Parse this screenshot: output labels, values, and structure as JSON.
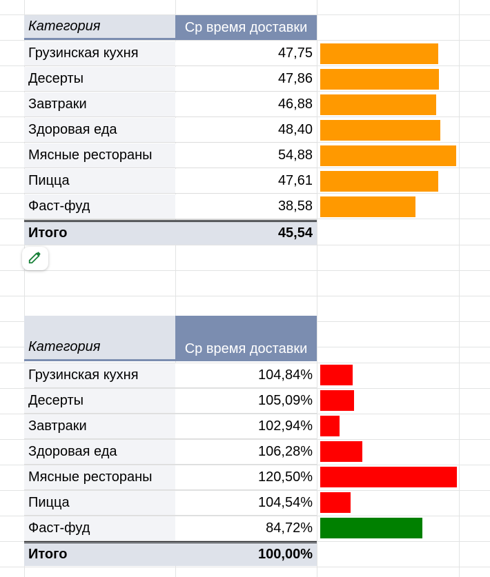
{
  "table1": {
    "header": {
      "category": "Категория",
      "metric": "Ср время доставки"
    },
    "rows": [
      {
        "category": "Грузинская кухня",
        "value": "47,75",
        "bar_value": 47.75
      },
      {
        "category": "Десерты",
        "value": "47,86",
        "bar_value": 47.86
      },
      {
        "category": "Завтраки",
        "value": "46,88",
        "bar_value": 46.88
      },
      {
        "category": "Здоровая еда",
        "value": "48,40",
        "bar_value": 48.4
      },
      {
        "category": "Мясные рестораны",
        "value": "54,88",
        "bar_value": 54.88
      },
      {
        "category": "Пицца",
        "value": "47,61",
        "bar_value": 47.61
      },
      {
        "category": "Фаст-фуд",
        "value": "38,58",
        "bar_value": 38.58
      }
    ],
    "total": {
      "label": "Итого",
      "value": "45,54"
    },
    "bar_color": "#ff9900"
  },
  "table2": {
    "header": {
      "category": "Категория",
      "metric": "Ср время доставки"
    },
    "rows": [
      {
        "category": "Грузинская кухня",
        "value": "104,84%",
        "bar_value": 104.84
      },
      {
        "category": "Десерты",
        "value": "105,09%",
        "bar_value": 105.09
      },
      {
        "category": "Завтраки",
        "value": "102,94%",
        "bar_value": 102.94
      },
      {
        "category": "Здоровая еда",
        "value": "106,28%",
        "bar_value": 106.28
      },
      {
        "category": "Мясные рестораны",
        "value": "120,50%",
        "bar_value": 120.5
      },
      {
        "category": "Пицца",
        "value": "104,54%",
        "bar_value": 104.54
      },
      {
        "category": "Фаст-фуд",
        "value": "84,72%",
        "bar_value": 84.72
      }
    ],
    "total": {
      "label": "Итого",
      "value": "100,00%"
    },
    "positive_color": "#ff0000",
    "negative_color": "#008000"
  },
  "edit_icon": "pencil-icon"
}
